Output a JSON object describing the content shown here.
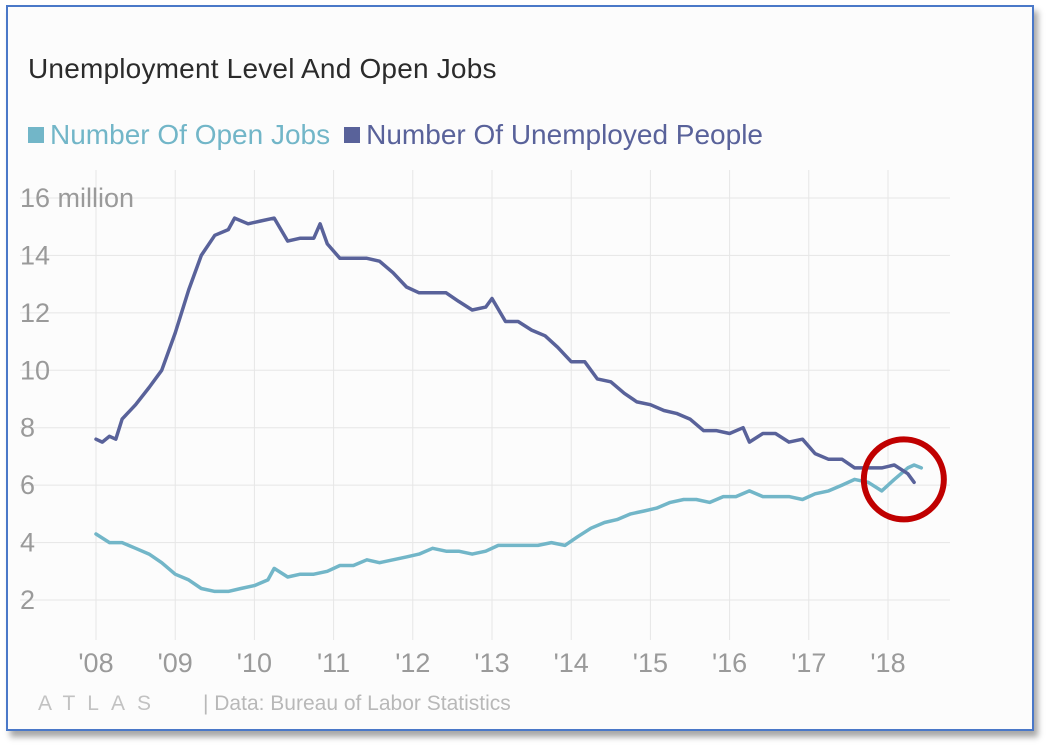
{
  "colors": {
    "open_jobs": "#72b6c8",
    "unemployed": "#59629a",
    "highlight": "#c00000",
    "grid": "#e6e6e6",
    "tick": "#9a9a9a"
  },
  "footer": {
    "logo": "ATLAS",
    "source": "| Data: Bureau of Labor Statistics"
  },
  "chart_data": {
    "type": "line",
    "title": "Unemployment Level And Open Jobs",
    "xlabel": "",
    "ylabel": "",
    "x_ticks": [
      "'08",
      "'09",
      "'10",
      "'11",
      "'12",
      "'13",
      "'14",
      "'15",
      "'16",
      "'17",
      "'18"
    ],
    "y_ticks": [
      "16 million",
      "14",
      "12",
      "10",
      "8",
      "6",
      "4",
      "2"
    ],
    "ylim": [
      2,
      16
    ],
    "xlim": [
      2008.0,
      2018.9
    ],
    "grid": true,
    "legend_position": "top-left",
    "annotation": "red circle around the point where open jobs exceed the number of unemployed people (2018)",
    "series": [
      {
        "name": "Number Of Open Jobs",
        "points": [
          [
            2008.0,
            4.3
          ],
          [
            2008.17,
            4.0
          ],
          [
            2008.33,
            4.0
          ],
          [
            2008.5,
            3.8
          ],
          [
            2008.67,
            3.6
          ],
          [
            2008.83,
            3.3
          ],
          [
            2009.0,
            2.9
          ],
          [
            2009.17,
            2.7
          ],
          [
            2009.33,
            2.4
          ],
          [
            2009.5,
            2.3
          ],
          [
            2009.67,
            2.3
          ],
          [
            2009.83,
            2.4
          ],
          [
            2010.0,
            2.5
          ],
          [
            2010.17,
            2.7
          ],
          [
            2010.25,
            3.1
          ],
          [
            2010.42,
            2.8
          ],
          [
            2010.58,
            2.9
          ],
          [
            2010.75,
            2.9
          ],
          [
            2010.92,
            3.0
          ],
          [
            2011.08,
            3.2
          ],
          [
            2011.25,
            3.2
          ],
          [
            2011.42,
            3.4
          ],
          [
            2011.58,
            3.3
          ],
          [
            2011.75,
            3.4
          ],
          [
            2011.92,
            3.5
          ],
          [
            2012.08,
            3.6
          ],
          [
            2012.25,
            3.8
          ],
          [
            2012.42,
            3.7
          ],
          [
            2012.58,
            3.7
          ],
          [
            2012.75,
            3.6
          ],
          [
            2012.92,
            3.7
          ],
          [
            2013.08,
            3.9
          ],
          [
            2013.25,
            3.9
          ],
          [
            2013.42,
            3.9
          ],
          [
            2013.58,
            3.9
          ],
          [
            2013.75,
            4.0
          ],
          [
            2013.92,
            3.9
          ],
          [
            2014.08,
            4.2
          ],
          [
            2014.25,
            4.5
          ],
          [
            2014.42,
            4.7
          ],
          [
            2014.58,
            4.8
          ],
          [
            2014.75,
            5.0
          ],
          [
            2014.92,
            5.1
          ],
          [
            2015.08,
            5.2
          ],
          [
            2015.25,
            5.4
          ],
          [
            2015.42,
            5.5
          ],
          [
            2015.58,
            5.5
          ],
          [
            2015.75,
            5.4
          ],
          [
            2015.92,
            5.6
          ],
          [
            2016.08,
            5.6
          ],
          [
            2016.25,
            5.8
          ],
          [
            2016.42,
            5.6
          ],
          [
            2016.58,
            5.6
          ],
          [
            2016.75,
            5.6
          ],
          [
            2016.92,
            5.5
          ],
          [
            2017.08,
            5.7
          ],
          [
            2017.25,
            5.8
          ],
          [
            2017.42,
            6.0
          ],
          [
            2017.58,
            6.2
          ],
          [
            2017.75,
            6.1
          ],
          [
            2017.92,
            5.8
          ],
          [
            2018.08,
            6.2
          ],
          [
            2018.25,
            6.6
          ],
          [
            2018.33,
            6.7
          ],
          [
            2018.42,
            6.6
          ]
        ]
      },
      {
        "name": "Number Of Unemployed People",
        "points": [
          [
            2008.0,
            7.6
          ],
          [
            2008.08,
            7.5
          ],
          [
            2008.17,
            7.7
          ],
          [
            2008.25,
            7.6
          ],
          [
            2008.33,
            8.3
          ],
          [
            2008.5,
            8.8
          ],
          [
            2008.67,
            9.4
          ],
          [
            2008.83,
            10.0
          ],
          [
            2009.0,
            11.3
          ],
          [
            2009.17,
            12.8
          ],
          [
            2009.33,
            14.0
          ],
          [
            2009.5,
            14.7
          ],
          [
            2009.67,
            14.9
          ],
          [
            2009.75,
            15.3
          ],
          [
            2009.92,
            15.1
          ],
          [
            2010.08,
            15.2
          ],
          [
            2010.25,
            15.3
          ],
          [
            2010.42,
            14.5
          ],
          [
            2010.58,
            14.6
          ],
          [
            2010.75,
            14.6
          ],
          [
            2010.83,
            15.1
          ],
          [
            2010.92,
            14.4
          ],
          [
            2011.08,
            13.9
          ],
          [
            2011.25,
            13.9
          ],
          [
            2011.42,
            13.9
          ],
          [
            2011.58,
            13.8
          ],
          [
            2011.75,
            13.4
          ],
          [
            2011.92,
            12.9
          ],
          [
            2012.08,
            12.7
          ],
          [
            2012.25,
            12.7
          ],
          [
            2012.42,
            12.7
          ],
          [
            2012.58,
            12.4
          ],
          [
            2012.75,
            12.1
          ],
          [
            2012.92,
            12.2
          ],
          [
            2013.0,
            12.5
          ],
          [
            2013.17,
            11.7
          ],
          [
            2013.33,
            11.7
          ],
          [
            2013.5,
            11.4
          ],
          [
            2013.67,
            11.2
          ],
          [
            2013.83,
            10.8
          ],
          [
            2014.0,
            10.3
          ],
          [
            2014.17,
            10.3
          ],
          [
            2014.33,
            9.7
          ],
          [
            2014.5,
            9.6
          ],
          [
            2014.67,
            9.2
          ],
          [
            2014.83,
            8.9
          ],
          [
            2015.0,
            8.8
          ],
          [
            2015.17,
            8.6
          ],
          [
            2015.33,
            8.5
          ],
          [
            2015.5,
            8.3
          ],
          [
            2015.67,
            7.9
          ],
          [
            2015.83,
            7.9
          ],
          [
            2016.0,
            7.8
          ],
          [
            2016.17,
            8.0
          ],
          [
            2016.25,
            7.5
          ],
          [
            2016.42,
            7.8
          ],
          [
            2016.58,
            7.8
          ],
          [
            2016.75,
            7.5
          ],
          [
            2016.92,
            7.6
          ],
          [
            2017.08,
            7.1
          ],
          [
            2017.25,
            6.9
          ],
          [
            2017.42,
            6.9
          ],
          [
            2017.58,
            6.6
          ],
          [
            2017.75,
            6.6
          ],
          [
            2017.92,
            6.6
          ],
          [
            2018.08,
            6.7
          ],
          [
            2018.25,
            6.4
          ],
          [
            2018.33,
            6.1
          ]
        ]
      }
    ]
  }
}
